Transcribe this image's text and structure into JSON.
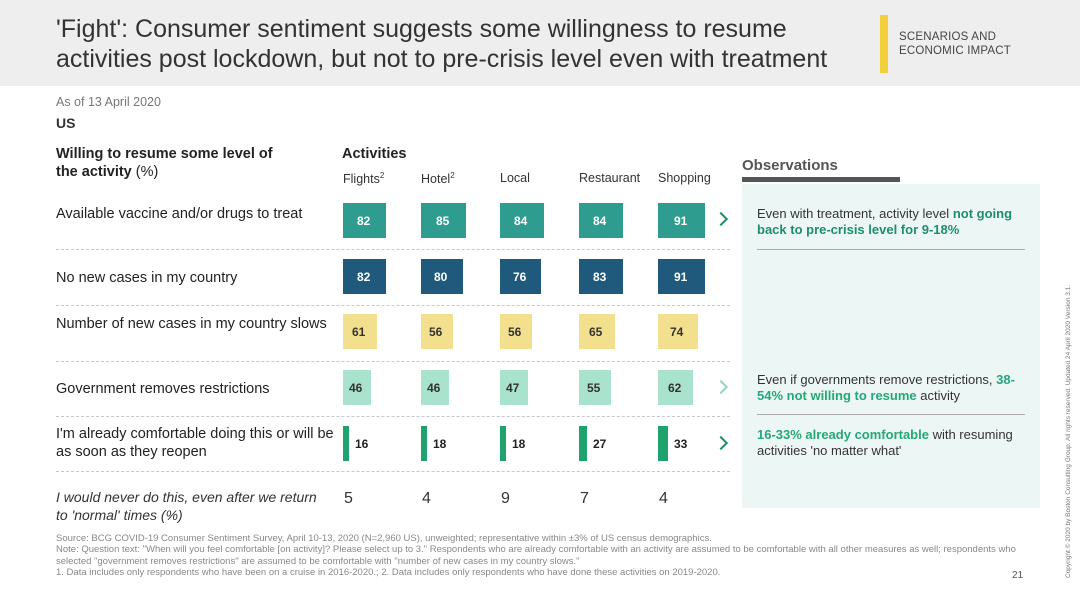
{
  "header": {
    "title": "'Fight': Consumer sentiment suggests some willingness to resume activities post lockdown, but not to pre-crisis level even with treatment",
    "section": "SCENARIOS AND ECONOMIC IMPACT"
  },
  "as_of": "As of 13 April 2020",
  "country": "US",
  "row_header": "Willing to resume some level of the activity",
  "row_header_unit": "(%)",
  "activities_header": "Activities",
  "chart_data": {
    "type": "bar",
    "categories": [
      "Flights",
      "Hotel",
      "Local",
      "Restaurant",
      "Shopping"
    ],
    "category_superscripts": [
      "2",
      "2",
      "",
      "",
      ""
    ],
    "rows": [
      {
        "label": "Available vaccine and/or drugs to treat",
        "values": [
          82,
          85,
          84,
          84,
          91
        ]
      },
      {
        "label": "No new cases in my country",
        "values": [
          82,
          80,
          76,
          83,
          91
        ]
      },
      {
        "label": "Number of new cases in my country slows",
        "values": [
          61,
          56,
          56,
          65,
          74
        ]
      },
      {
        "label": "Government removes restrictions",
        "values": [
          46,
          46,
          47,
          55,
          62
        ]
      },
      {
        "label": "I'm already comfortable doing this or will be as soon as they reopen",
        "values": [
          16,
          18,
          18,
          27,
          33
        ]
      }
    ],
    "never_label": "I would never do this, even after we return to 'normal' times (%)",
    "never_values": [
      5,
      4,
      9,
      7,
      4
    ],
    "colors": [
      "#2e9c8e",
      "#1f5a7d",
      "#f3e08f",
      "#a9e2cd",
      "#1ea36f"
    ],
    "ylim": [
      0,
      100
    ]
  },
  "observations": {
    "title": "Observations",
    "items": [
      {
        "pre": "Even with treatment, activity level ",
        "em": "not going back to pre-crisis level for 9-18%",
        "post": ""
      },
      {
        "pre": "Even if governments remove restrictions, ",
        "em": "38-54% not willing to resume",
        "post": " activity"
      },
      {
        "pre": "",
        "em": "16-33% already comfortable",
        "post": " with resuming activities 'no matter what'"
      }
    ]
  },
  "footnotes": [
    "Source: BCG COVID-19 Consumer Sentiment Survey, April 10-13, 2020 (N=2,960 US), unweighted; representative within ±3% of US census demographics.",
    "Note: Question text: \"When will you feel comfortable [on activity]? Please select up to 3.\" Respondents who are already comfortable with an activity are assumed to be comfortable with all other measures as well; respondents who selected \"government removes restrictions\" are assumed to be comfortable with \"number of new cases in my country slows.\"",
    "1. Data includes only respondents who have been on a cruise in 2016-2020.; 2. Data includes only respondents who have done these activities on 2019-2020."
  ],
  "page_number": "21",
  "copyright": "Copyright © 2020 by Boston Consulting Group. All rights reserved.  Updated 24 April 2020 Version 3.1."
}
